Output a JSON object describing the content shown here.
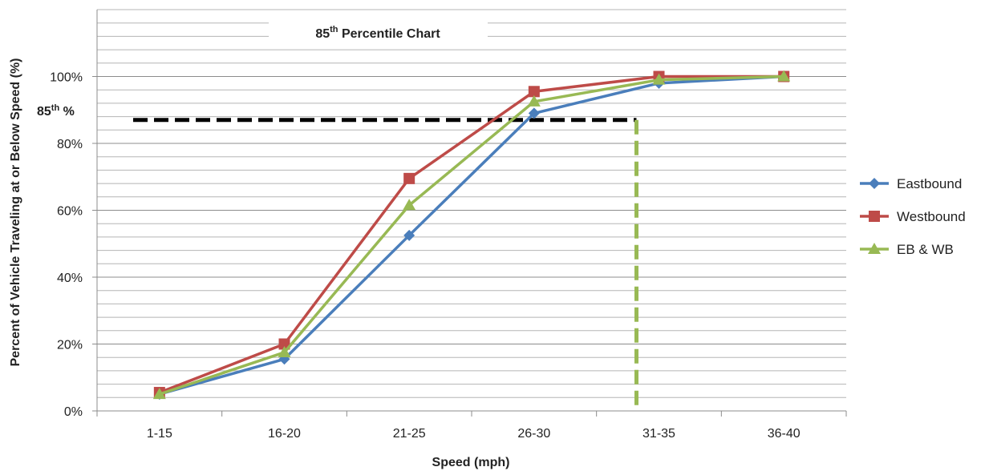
{
  "chart_data": {
    "type": "line",
    "title": "85th Percentile Chart",
    "title_main": "85",
    "title_sup": "th",
    "title_rest": " Percentile Chart",
    "xlabel": "Speed (mph)",
    "ylabel": "Percent of  Vehicle Traveling at or Below Speed  (%)",
    "categories": [
      "1-15",
      "16-20",
      "21-25",
      "26-30",
      "31-35",
      "36-40"
    ],
    "ylim": [
      0,
      1.2
    ],
    "yticks": [
      {
        "value": 0,
        "label": "0%"
      },
      {
        "value": 0.2,
        "label": "20%"
      },
      {
        "value": 0.4,
        "label": "40%"
      },
      {
        "value": 0.6,
        "label": "60%"
      },
      {
        "value": 0.8,
        "label": "80%"
      },
      {
        "value": 1.0,
        "label": "100%"
      }
    ],
    "minor_grid_step": 0.04,
    "grid": true,
    "legend_position": "right",
    "series": [
      {
        "name": "Eastbound",
        "color": "#4a7ebb",
        "marker": "diamond",
        "values": [
          0.05,
          0.155,
          0.525,
          0.89,
          0.98,
          1.0
        ]
      },
      {
        "name": "Westbound",
        "color": "#be4b48",
        "marker": "square",
        "values": [
          0.055,
          0.2,
          0.695,
          0.955,
          1.0,
          1.0
        ]
      },
      {
        "name": "EB & WB",
        "color": "#98b954",
        "marker": "triangle",
        "values": [
          0.05,
          0.175,
          0.615,
          0.925,
          0.99,
          1.0
        ]
      }
    ],
    "annotations": {
      "percentile_value": 0.87,
      "percentile_label_main": "85",
      "percentile_label_sup": "th",
      "percentile_label_rest": " %",
      "percentile_speed_x": 3.82,
      "horizontal_line_color": "#000000",
      "vertical_line_color": "#98b954"
    }
  }
}
